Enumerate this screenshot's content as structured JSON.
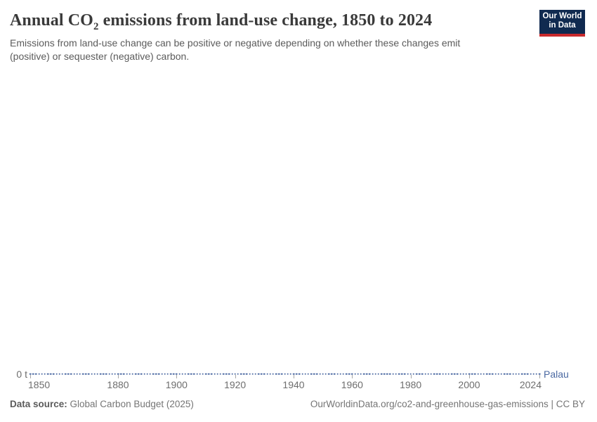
{
  "header": {
    "title_prefix": "Annual CO",
    "title_sub": "2",
    "title_suffix": " emissions from land-use change, 1850 to 2024",
    "subtitle": "Emissions from land-use change can be positive or negative depending on whether these changes emit\n(positive) or sequester (negative) carbon.",
    "logo": {
      "line1": "Our World",
      "line2": "in Data",
      "bg_color": "#102a50",
      "accent_color": "#c92a2d"
    }
  },
  "chart_data": {
    "type": "line",
    "title": "Annual CO₂ emissions from land-use change, 1850 to 2024",
    "x_start": 1850,
    "x_end": 2024,
    "x_step": 1,
    "series": [
      {
        "name": "Palau",
        "color": "#4b69a2",
        "constant_value": 0,
        "unit": "t",
        "values_description": "0 t for every year from 1850 through 2024 (flat line on the zero axis)"
      }
    ],
    "x_ticks": [
      1850,
      1880,
      1900,
      1920,
      1940,
      1960,
      1980,
      2000,
      2024
    ],
    "y_zero_label": "0 t",
    "marker": "dot",
    "grid": false,
    "legend": "end-of-line entity label"
  },
  "footer": {
    "source_label": "Data source:",
    "source_value": " Global Carbon Budget (2025)",
    "citation": "OurWorldinData.org/co2-and-greenhouse-gas-emissions | CC BY"
  }
}
